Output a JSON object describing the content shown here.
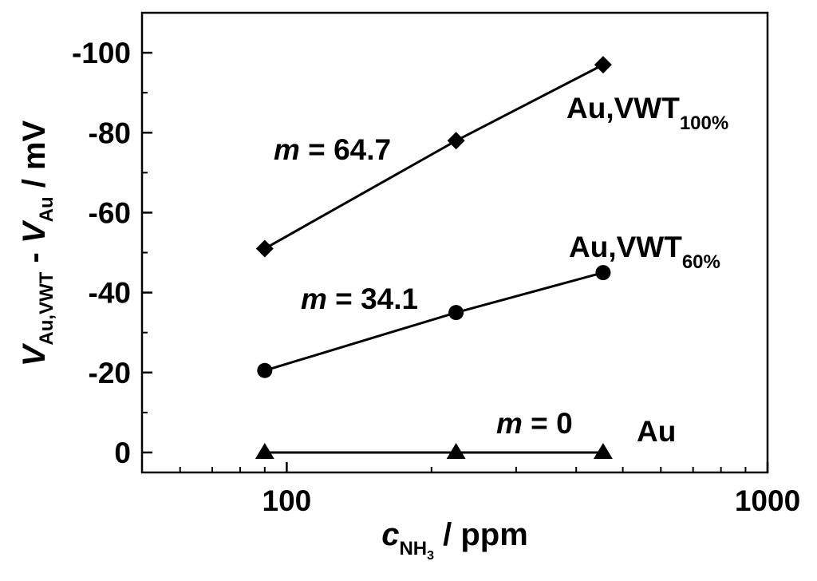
{
  "chart_data": {
    "type": "scatter",
    "x_scale": "log",
    "xlim": [
      50,
      1000
    ],
    "ylim": [
      5,
      -110
    ],
    "grid": false,
    "x_ticks": [
      100,
      1000
    ],
    "x_tick_labels": [
      "100",
      "1000"
    ],
    "y_ticks": [
      0,
      -20,
      -40,
      -60,
      -80,
      -100
    ],
    "y_tick_labels": [
      "0",
      "-20",
      "-40",
      "-60",
      "-80",
      "-100"
    ],
    "xlabel": {
      "main": "c",
      "sub": "NH",
      "subsub": "3",
      "rest": " / ppm"
    },
    "ylabel": {
      "v1": "V",
      "v1_sub": "Au,VWT",
      "mid": " - ",
      "v2": "V",
      "v2_sub": "Au",
      "rest": " / mV"
    },
    "series": [
      {
        "name": "Au,VWT",
        "name_sub": "100%",
        "marker": "diamond",
        "x": [
          90,
          225,
          455
        ],
        "y": [
          -51,
          -78,
          -97
        ],
        "fit_label": {
          "m": "m",
          "eq": " = 64.7"
        }
      },
      {
        "name": "Au,VWT",
        "name_sub": "60%",
        "marker": "circle",
        "x": [
          90,
          225,
          455
        ],
        "y": [
          -20.5,
          -35,
          -45
        ],
        "fit_label": {
          "m": "m",
          "eq": " = 34.1"
        }
      },
      {
        "name": "Au",
        "name_sub": "",
        "marker": "triangle",
        "x": [
          90,
          225,
          455
        ],
        "y": [
          0,
          0,
          0
        ],
        "fit_label": {
          "m": "m",
          "eq": " = 0"
        }
      }
    ]
  }
}
